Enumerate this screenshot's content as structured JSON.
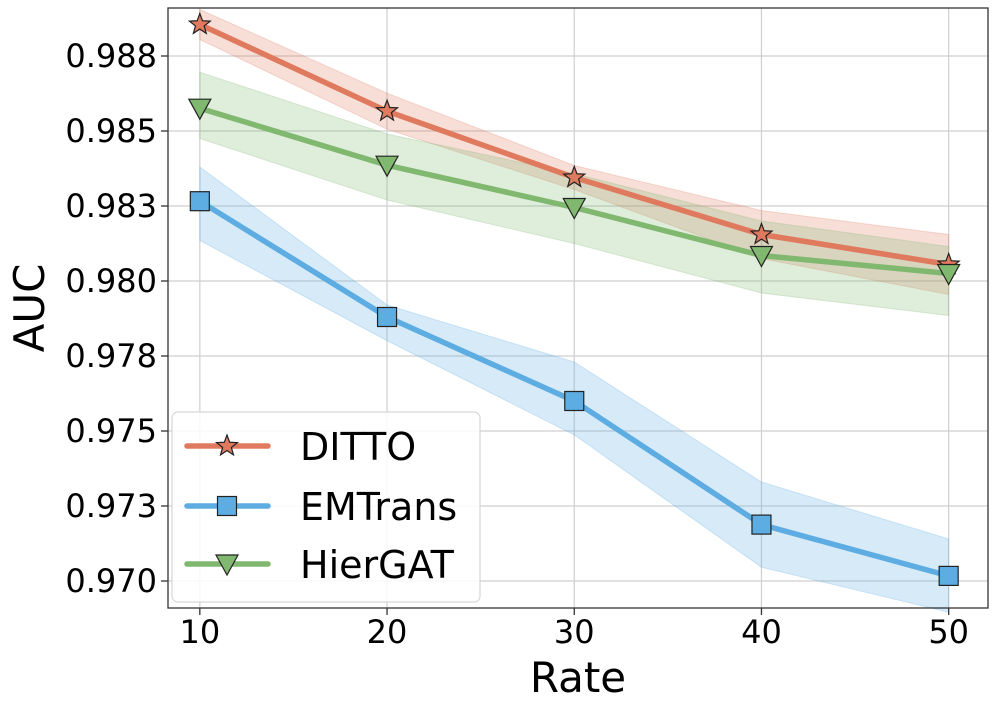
{
  "chart_data": {
    "type": "line",
    "title": "",
    "xlabel": "Rate",
    "ylabel": "AUC",
    "x": [
      10,
      20,
      30,
      40,
      50
    ],
    "xticks": [
      "10",
      "20",
      "30",
      "40",
      "50"
    ],
    "xlim": [
      8.3,
      52.1
    ],
    "yticks": [
      0.97,
      0.9725,
      0.975,
      0.9775,
      0.98,
      0.9825,
      0.985,
      0.9875
    ],
    "ytick_labels": [
      "0.970",
      "0.973",
      "0.975",
      "0.978",
      "0.980",
      "0.983",
      "0.985",
      "0.988"
    ],
    "ylim": [
      0.9691,
      0.9891
    ],
    "grid": true,
    "legend_position": "bottom-left",
    "series": [
      {
        "name": "DITTO",
        "color": "#e07a5f",
        "marker": "star",
        "values": [
          0.98855,
          0.98566,
          0.98345,
          0.98155,
          0.98055
        ],
        "lower": [
          0.98805,
          0.98506,
          0.98305,
          0.98075,
          0.97955
        ],
        "upper": [
          0.98905,
          0.98626,
          0.98385,
          0.98235,
          0.98155
        ]
      },
      {
        "name": "EMTrans",
        "color": "#5dade2",
        "marker": "square",
        "values": [
          0.98266,
          0.9788,
          0.976,
          0.97188,
          0.97017
        ],
        "lower": [
          0.98135,
          0.97801,
          0.97487,
          0.97046,
          0.96896
        ],
        "upper": [
          0.9838,
          0.9792,
          0.9773,
          0.9733,
          0.9714
        ]
      },
      {
        "name": "HierGAT",
        "color": "#81b870",
        "marker": "triangle-down",
        "values": [
          0.98576,
          0.98386,
          0.98245,
          0.98085,
          0.98025
        ],
        "lower": [
          0.98475,
          0.9827,
          0.98125,
          0.9796,
          0.97885
        ],
        "upper": [
          0.98696,
          0.9849,
          0.98358,
          0.982,
          0.98115
        ]
      }
    ]
  }
}
